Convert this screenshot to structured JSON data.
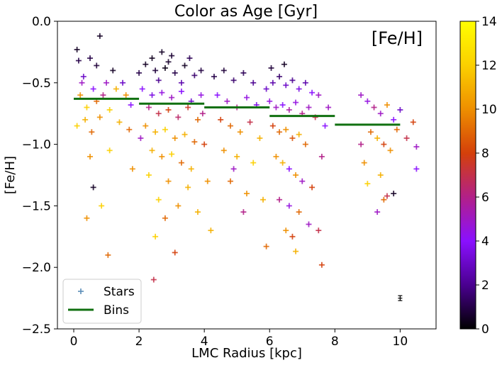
{
  "chart_data": {
    "type": "scatter",
    "title": "Color as Age [Gyr]",
    "xlabel": "LMC Radius [kpc]",
    "ylabel": "[Fe/H]",
    "annotation": "[Fe/H]",
    "xlim": [
      -0.5,
      11.1
    ],
    "ylim": [
      -2.5,
      0.0
    ],
    "xticks": [
      0,
      2,
      4,
      6,
      8,
      10
    ],
    "yticks": [
      0.0,
      -0.5,
      -1.0,
      -1.5,
      -2.0,
      -2.5
    ],
    "xtick_labels": [
      "0",
      "2",
      "4",
      "6",
      "8",
      "10"
    ],
    "ytick_labels": [
      "0.0",
      "−0.5",
      "−1.0",
      "−1.5",
      "−2.0",
      "−2.5"
    ],
    "grid": false,
    "legend": {
      "placement": "lower-left",
      "entries": [
        {
          "label": "Stars",
          "marker": "+",
          "color": "#5b8db8"
        },
        {
          "label": "Bins",
          "marker": "line",
          "color": "#107010"
        }
      ]
    },
    "colorbar": {
      "colormap": "gnuplot",
      "label": "",
      "range": [
        0,
        14
      ],
      "ticks": [
        0,
        2,
        4,
        6,
        8,
        10,
        12,
        14
      ],
      "tick_labels": [
        "0",
        "2",
        "4",
        "6",
        "8",
        "10",
        "12",
        "14"
      ],
      "stops": [
        "#000000",
        "#4a0090",
        "#8a10ff",
        "#b22088",
        "#d4400a",
        "#ee8f00",
        "#fbd000",
        "#ffff00"
      ]
    },
    "bins": [
      {
        "x_start": 0,
        "x_end": 2,
        "feh": -0.63
      },
      {
        "x_start": 2,
        "x_end": 4,
        "feh": -0.67
      },
      {
        "x_start": 4,
        "x_end": 6,
        "feh": -0.7
      },
      {
        "x_start": 6,
        "x_end": 8,
        "feh": -0.77
      },
      {
        "x_start": 8,
        "x_end": 10,
        "feh": -0.84
      }
    ],
    "error_bar": {
      "x": 10.0,
      "y": -2.25,
      "yerr": 0.02,
      "xerr": 0.05
    },
    "stars": [
      {
        "r": 0.1,
        "feh": -0.23,
        "age": 0.5
      },
      {
        "r": 0.15,
        "feh": -0.32,
        "age": 1
      },
      {
        "r": 0.8,
        "feh": -0.12,
        "age": 0.5
      },
      {
        "r": 0.5,
        "feh": -0.3,
        "age": 1
      },
      {
        "r": 0.3,
        "feh": -0.45,
        "age": 3
      },
      {
        "r": 0.6,
        "feh": -0.55,
        "age": 4
      },
      {
        "r": 0.2,
        "feh": -0.6,
        "age": 10
      },
      {
        "r": 0.4,
        "feh": -0.7,
        "age": 12
      },
      {
        "r": 0.7,
        "feh": -0.65,
        "age": 9
      },
      {
        "r": 1.0,
        "feh": -0.5,
        "age": 5
      },
      {
        "r": 1.3,
        "feh": -0.55,
        "age": 11
      },
      {
        "r": 1.6,
        "feh": -0.6,
        "age": 10
      },
      {
        "r": 0.1,
        "feh": -0.85,
        "age": 12
      },
      {
        "r": 0.35,
        "feh": -0.8,
        "age": 11
      },
      {
        "r": 0.55,
        "feh": -0.9,
        "age": 9
      },
      {
        "r": 0.8,
        "feh": -0.78,
        "age": 10
      },
      {
        "r": 1.1,
        "feh": -0.72,
        "age": 12
      },
      {
        "r": 1.4,
        "feh": -0.82,
        "age": 11
      },
      {
        "r": 1.7,
        "feh": -0.88,
        "age": 9
      },
      {
        "r": 0.5,
        "feh": -1.1,
        "age": 10
      },
      {
        "r": 1.1,
        "feh": -1.05,
        "age": 12
      },
      {
        "r": 1.8,
        "feh": -1.2,
        "age": 10
      },
      {
        "r": 0.6,
        "feh": -1.35,
        "age": 0.5
      },
      {
        "r": 0.85,
        "feh": -1.5,
        "age": 12
      },
      {
        "r": 0.4,
        "feh": -1.6,
        "age": 10
      },
      {
        "r": 1.05,
        "feh": -1.9,
        "age": 9
      },
      {
        "r": 0.7,
        "feh": -0.36,
        "age": 0.8
      },
      {
        "r": 1.2,
        "feh": -0.4,
        "age": 0.5
      },
      {
        "r": 1.5,
        "feh": -0.5,
        "age": 3
      },
      {
        "r": 1.75,
        "feh": -0.68,
        "age": 4
      },
      {
        "r": 0.25,
        "feh": -0.5,
        "age": 5
      },
      {
        "r": 0.9,
        "feh": -0.6,
        "age": 6
      },
      {
        "r": 2.2,
        "feh": -0.35,
        "age": 0.5
      },
      {
        "r": 2.5,
        "feh": -0.4,
        "age": 0.8
      },
      {
        "r": 2.8,
        "feh": -0.38,
        "age": 0.3
      },
      {
        "r": 3.1,
        "feh": -0.42,
        "age": 1
      },
      {
        "r": 3.4,
        "feh": -0.36,
        "age": 0.5
      },
      {
        "r": 3.7,
        "feh": -0.44,
        "age": 1.5
      },
      {
        "r": 2.4,
        "feh": -0.3,
        "age": 0.4
      },
      {
        "r": 3.0,
        "feh": -0.28,
        "age": 0.7
      },
      {
        "r": 2.6,
        "feh": -0.48,
        "age": 2
      },
      {
        "r": 3.3,
        "feh": -0.5,
        "age": 2.5
      },
      {
        "r": 2.9,
        "feh": -0.33,
        "age": 0.6
      },
      {
        "r": 2.0,
        "feh": -0.42,
        "age": 1
      },
      {
        "r": 3.9,
        "feh": -0.4,
        "age": 0.9
      },
      {
        "r": 2.7,
        "feh": -0.25,
        "age": 0.5
      },
      {
        "r": 3.55,
        "feh": -0.3,
        "age": 1.2
      },
      {
        "r": 2.1,
        "feh": -0.55,
        "age": 4
      },
      {
        "r": 2.4,
        "feh": -0.6,
        "age": 3.5
      },
      {
        "r": 2.7,
        "feh": -0.58,
        "age": 4.5
      },
      {
        "r": 3.0,
        "feh": -0.62,
        "age": 5
      },
      {
        "r": 3.3,
        "feh": -0.57,
        "age": 4
      },
      {
        "r": 3.6,
        "feh": -0.65,
        "age": 3
      },
      {
        "r": 3.9,
        "feh": -0.6,
        "age": 4.5
      },
      {
        "r": 2.3,
        "feh": -0.7,
        "age": 6
      },
      {
        "r": 2.6,
        "feh": -0.75,
        "age": 7
      },
      {
        "r": 2.9,
        "feh": -0.72,
        "age": 8
      },
      {
        "r": 3.2,
        "feh": -0.78,
        "age": 6.5
      },
      {
        "r": 3.5,
        "feh": -0.7,
        "age": 7.5
      },
      {
        "r": 3.8,
        "feh": -0.8,
        "age": 9
      },
      {
        "r": 2.2,
        "feh": -0.85,
        "age": 10
      },
      {
        "r": 2.5,
        "feh": -0.9,
        "age": 11
      },
      {
        "r": 2.8,
        "feh": -0.88,
        "age": 12
      },
      {
        "r": 3.1,
        "feh": -0.95,
        "age": 10
      },
      {
        "r": 3.4,
        "feh": -0.92,
        "age": 11
      },
      {
        "r": 3.7,
        "feh": -0.98,
        "age": 9
      },
      {
        "r": 2.4,
        "feh": -1.05,
        "age": 11
      },
      {
        "r": 2.7,
        "feh": -1.1,
        "age": 10
      },
      {
        "r": 3.0,
        "feh": -1.08,
        "age": 12
      },
      {
        "r": 3.3,
        "feh": -1.15,
        "age": 9
      },
      {
        "r": 3.6,
        "feh": -1.2,
        "age": 11
      },
      {
        "r": 2.3,
        "feh": -1.25,
        "age": 12
      },
      {
        "r": 2.9,
        "feh": -1.3,
        "age": 10
      },
      {
        "r": 3.5,
        "feh": -1.35,
        "age": 11
      },
      {
        "r": 2.6,
        "feh": -1.45,
        "age": 12
      },
      {
        "r": 3.2,
        "feh": -1.5,
        "age": 10
      },
      {
        "r": 2.8,
        "feh": -1.6,
        "age": 9
      },
      {
        "r": 3.8,
        "feh": -1.55,
        "age": 11
      },
      {
        "r": 2.5,
        "feh": -1.75,
        "age": 12
      },
      {
        "r": 3.1,
        "feh": -1.88,
        "age": 8
      },
      {
        "r": 2.45,
        "feh": -2.1,
        "age": 7
      },
      {
        "r": 4.2,
        "feh": -1.7,
        "age": 11
      },
      {
        "r": 4.1,
        "feh": -1.3,
        "age": 10
      },
      {
        "r": 2.05,
        "feh": -0.95,
        "age": 5
      },
      {
        "r": 3.95,
        "feh": -0.75,
        "age": 6
      },
      {
        "r": 4.0,
        "feh": -1.0,
        "age": 8
      },
      {
        "r": 4.3,
        "feh": -0.45,
        "age": 1
      },
      {
        "r": 4.6,
        "feh": -0.4,
        "age": 0.8
      },
      {
        "r": 4.9,
        "feh": -0.48,
        "age": 1.5
      },
      {
        "r": 5.2,
        "feh": -0.42,
        "age": 1.2
      },
      {
        "r": 5.5,
        "feh": -0.5,
        "age": 2
      },
      {
        "r": 4.4,
        "feh": -0.6,
        "age": 4
      },
      {
        "r": 4.7,
        "feh": -0.65,
        "age": 5
      },
      {
        "r": 5.0,
        "feh": -0.7,
        "age": 6
      },
      {
        "r": 5.3,
        "feh": -0.62,
        "age": 4.5
      },
      {
        "r": 5.6,
        "feh": -0.68,
        "age": 3.5
      },
      {
        "r": 4.5,
        "feh": -0.8,
        "age": 8
      },
      {
        "r": 4.8,
        "feh": -0.85,
        "age": 9
      },
      {
        "r": 5.1,
        "feh": -0.9,
        "age": 10
      },
      {
        "r": 5.4,
        "feh": -0.82,
        "age": 7
      },
      {
        "r": 5.7,
        "feh": -0.95,
        "age": 11
      },
      {
        "r": 4.6,
        "feh": -1.05,
        "age": 10
      },
      {
        "r": 5.0,
        "feh": -1.1,
        "age": 11
      },
      {
        "r": 5.5,
        "feh": -1.15,
        "age": 12
      },
      {
        "r": 4.8,
        "feh": -1.3,
        "age": 9
      },
      {
        "r": 5.3,
        "feh": -1.4,
        "age": 10
      },
      {
        "r": 5.8,
        "feh": -1.45,
        "age": 11
      },
      {
        "r": 5.2,
        "feh": -1.55,
        "age": 6
      },
      {
        "r": 4.9,
        "feh": -1.2,
        "age": 5
      },
      {
        "r": 5.9,
        "feh": -0.55,
        "age": 3
      },
      {
        "r": 6.1,
        "feh": -0.5,
        "age": 2.5
      },
      {
        "r": 6.3,
        "feh": -0.45,
        "age": 1.5
      },
      {
        "r": 6.5,
        "feh": -0.52,
        "age": 3
      },
      {
        "r": 6.7,
        "feh": -0.48,
        "age": 2
      },
      {
        "r": 6.9,
        "feh": -0.55,
        "age": 3.5
      },
      {
        "r": 7.1,
        "feh": -0.5,
        "age": 2.5
      },
      {
        "r": 7.3,
        "feh": -0.58,
        "age": 4
      },
      {
        "r": 6.0,
        "feh": -0.65,
        "age": 4.5
      },
      {
        "r": 6.2,
        "feh": -0.7,
        "age": 5
      },
      {
        "r": 6.4,
        "feh": -0.68,
        "age": 4
      },
      {
        "r": 6.6,
        "feh": -0.72,
        "age": 5.5
      },
      {
        "r": 6.8,
        "feh": -0.66,
        "age": 4.5
      },
      {
        "r": 7.0,
        "feh": -0.75,
        "age": 6
      },
      {
        "r": 7.2,
        "feh": -0.7,
        "age": 5
      },
      {
        "r": 7.4,
        "feh": -0.78,
        "age": 7
      },
      {
        "r": 6.1,
        "feh": -0.85,
        "age": 8
      },
      {
        "r": 6.3,
        "feh": -0.9,
        "age": 9
      },
      {
        "r": 6.5,
        "feh": -0.88,
        "age": 10
      },
      {
        "r": 6.7,
        "feh": -0.95,
        "age": 8.5
      },
      {
        "r": 6.9,
        "feh": -0.92,
        "age": 11
      },
      {
        "r": 7.1,
        "feh": -1.0,
        "age": 9
      },
      {
        "r": 6.2,
        "feh": -1.1,
        "age": 10
      },
      {
        "r": 6.4,
        "feh": -1.15,
        "age": 11
      },
      {
        "r": 6.6,
        "feh": -1.2,
        "age": 4
      },
      {
        "r": 6.8,
        "feh": -1.25,
        "age": 10
      },
      {
        "r": 7.0,
        "feh": -1.3,
        "age": 5
      },
      {
        "r": 7.3,
        "feh": -1.35,
        "age": 8
      },
      {
        "r": 6.3,
        "feh": -1.45,
        "age": 6
      },
      {
        "r": 6.6,
        "feh": -1.5,
        "age": 4.5
      },
      {
        "r": 6.9,
        "feh": -1.55,
        "age": 9
      },
      {
        "r": 7.2,
        "feh": -1.65,
        "age": 5
      },
      {
        "r": 6.5,
        "feh": -1.7,
        "age": 10
      },
      {
        "r": 6.7,
        "feh": -1.75,
        "age": 8
      },
      {
        "r": 7.5,
        "feh": -1.7,
        "age": 7
      },
      {
        "r": 6.8,
        "feh": -1.87,
        "age": 11
      },
      {
        "r": 7.6,
        "feh": -1.98,
        "age": 8
      },
      {
        "r": 5.9,
        "feh": -1.83,
        "age": 9
      },
      {
        "r": 6.45,
        "feh": -0.35,
        "age": 0.5
      },
      {
        "r": 6.05,
        "feh": -0.38,
        "age": 0.8
      },
      {
        "r": 7.5,
        "feh": -0.6,
        "age": 5
      },
      {
        "r": 7.7,
        "feh": -0.85,
        "age": 4
      },
      {
        "r": 7.8,
        "feh": -0.7,
        "age": 5
      },
      {
        "r": 7.6,
        "feh": -1.1,
        "age": 6
      },
      {
        "r": 8.8,
        "feh": -0.6,
        "age": 5
      },
      {
        "r": 9.0,
        "feh": -0.65,
        "age": 4.5
      },
      {
        "r": 9.2,
        "feh": -0.7,
        "age": 6
      },
      {
        "r": 9.4,
        "feh": -0.75,
        "age": 5
      },
      {
        "r": 9.6,
        "feh": -0.68,
        "age": 10
      },
      {
        "r": 9.8,
        "feh": -0.8,
        "age": 4
      },
      {
        "r": 10.0,
        "feh": -0.72,
        "age": 3
      },
      {
        "r": 10.4,
        "feh": -0.82,
        "age": 8
      },
      {
        "r": 10.5,
        "feh": -1.02,
        "age": 5
      },
      {
        "r": 10.5,
        "feh": -1.2,
        "age": 4
      },
      {
        "r": 9.1,
        "feh": -0.9,
        "age": 9
      },
      {
        "r": 9.3,
        "feh": -0.95,
        "age": 11
      },
      {
        "r": 9.5,
        "feh": -1.0,
        "age": 8
      },
      {
        "r": 9.7,
        "feh": -1.05,
        "age": 10
      },
      {
        "r": 9.4,
        "feh": -1.25,
        "age": 11
      },
      {
        "r": 9.6,
        "feh": -1.42,
        "age": 7
      },
      {
        "r": 9.8,
        "feh": -1.4,
        "age": 0.5
      },
      {
        "r": 9.5,
        "feh": -1.45,
        "age": 9
      },
      {
        "r": 9.3,
        "feh": -1.55,
        "age": 5
      },
      {
        "r": 9.0,
        "feh": -1.32,
        "age": 12
      },
      {
        "r": 8.9,
        "feh": -1.15,
        "age": 10
      },
      {
        "r": 8.8,
        "feh": -1.0,
        "age": 6
      },
      {
        "r": 10.2,
        "feh": -0.95,
        "age": 7
      },
      {
        "r": 9.9,
        "feh": -0.88,
        "age": 9
      }
    ]
  }
}
